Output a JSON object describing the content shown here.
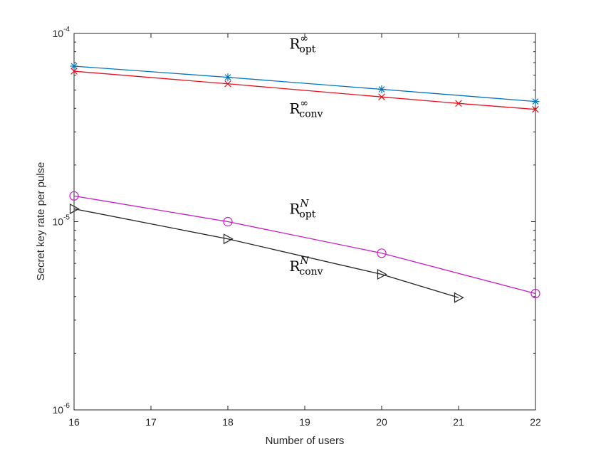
{
  "chart_data": {
    "type": "line",
    "title": "",
    "xlabel": "Number of users",
    "ylabel": "Secret key rate per pulse",
    "xlim": [
      16,
      22
    ],
    "ylim": [
      1e-06,
      0.0001
    ],
    "yscale": "log",
    "xticks": [
      "16",
      "17",
      "18",
      "19",
      "20",
      "21",
      "22"
    ],
    "yticks": [
      {
        "base": "10",
        "exp": "-6"
      },
      {
        "base": "10",
        "exp": "-5"
      },
      {
        "base": "10",
        "exp": "-4"
      }
    ],
    "grid": false,
    "series": [
      {
        "name": "R_opt_inf",
        "color": "#0072BD",
        "marker": "asterisk",
        "x": [
          16,
          18,
          20,
          22
        ],
        "y": [
          6.7e-05,
          5.85e-05,
          5.05e-05,
          4.35e-05
        ]
      },
      {
        "name": "R_conv_inf",
        "color": "#E8121D",
        "marker": "x",
        "x": [
          16,
          18,
          20,
          21,
          22
        ],
        "y": [
          6.3e-05,
          5.4e-05,
          4.6e-05,
          4.25e-05,
          3.95e-05
        ]
      },
      {
        "name": "R_opt_N",
        "color": "#C81BC8",
        "marker": "circle",
        "x": [
          16,
          18,
          20,
          22
        ],
        "y": [
          1.37e-05,
          1e-05,
          6.8e-06,
          4.15e-06
        ]
      },
      {
        "name": "R_conv_N",
        "color": "#222222",
        "marker": "triangle-right",
        "x": [
          16,
          18,
          20,
          21
        ],
        "y": [
          1.17e-05,
          8.1e-06,
          5.25e-06,
          3.95e-06
        ]
      }
    ],
    "annotations": [
      {
        "base": "R",
        "sub": "opt",
        "sup": "∞",
        "near_x": 18.8,
        "near_y": 8.3e-05
      },
      {
        "base": "R",
        "sub": "conv",
        "sup": "∞",
        "near_x": 18.8,
        "near_y": 3.75e-05
      },
      {
        "base": "R",
        "sub": "opt",
        "sup": "N",
        "near_x": 18.8,
        "near_y": 1.1e-05
      },
      {
        "base": "R",
        "sub": "conv",
        "sup": "N",
        "near_x": 18.8,
        "near_y": 5.45e-06
      }
    ]
  }
}
